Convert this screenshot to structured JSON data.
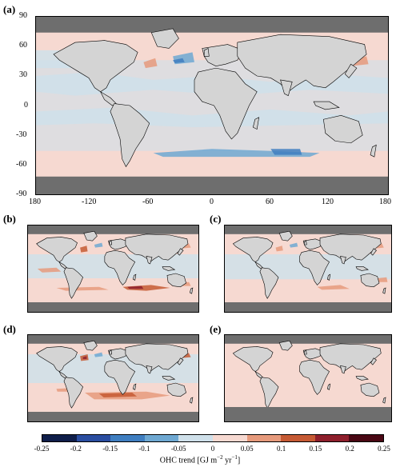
{
  "panels": [
    {
      "label": "(a)",
      "id": "a"
    },
    {
      "label": "(b)",
      "id": "b"
    },
    {
      "label": "(c)",
      "id": "c"
    },
    {
      "label": "(d)",
      "id": "d"
    },
    {
      "label": "(e)",
      "id": "e"
    }
  ],
  "axes": {
    "lat_ticks": [
      "90",
      "60",
      "30",
      "0",
      "-30",
      "-60",
      "-90"
    ],
    "lon_ticks": [
      "180",
      "-120",
      "-60",
      "0",
      "60",
      "120",
      "180"
    ]
  },
  "colorbar": {
    "ticks": [
      "-0.25",
      "-0.2",
      "-0.15",
      "-0.1",
      "-0.05",
      "0",
      "0.05",
      "0.1",
      "0.15",
      "0.2",
      "0.25"
    ],
    "colors": [
      "#0f1e4a",
      "#2a4da0",
      "#3f7ec0",
      "#6ea8d2",
      "#cfe0ea",
      "#f6d9d1",
      "#e69a7c",
      "#c55a34",
      "#8e1f2c",
      "#4a0814"
    ],
    "title_main": "OHC trend [GJ m",
    "exp1": "−2",
    "mid": " yr",
    "exp2": "−1",
    "title_end": "]"
  },
  "colors": {
    "land": "#d4d4d4",
    "ice": "#6e6e6e",
    "neutral_warm": "#f6d9d1",
    "neutral_cool": "#cfe0ea",
    "blue": "#6ea8d2",
    "deep_blue": "#3f7ec0",
    "orange": "#e69a7c",
    "red": "#c55a34",
    "dark_red": "#8e1f2c"
  }
}
